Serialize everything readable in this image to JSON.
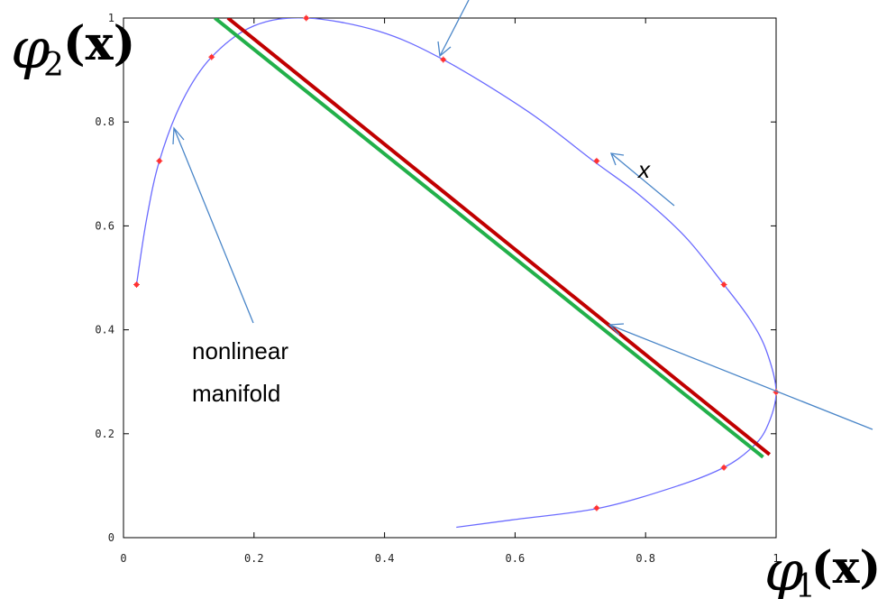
{
  "chart_data": {
    "type": "scatter",
    "xlim": [
      0,
      1
    ],
    "ylim": [
      0,
      1
    ],
    "xticks": [
      0,
      0.2,
      0.4,
      0.6,
      0.8,
      1
    ],
    "yticks": [
      0,
      0.2,
      0.4,
      0.6,
      0.8,
      1
    ],
    "x_tick_labels": [
      "0",
      "0.2",
      "0.4",
      "0.6",
      "0.8",
      "1"
    ],
    "y_tick_labels": [
      "0",
      "0.2",
      "0.4",
      "0.6",
      "0.8",
      "1"
    ],
    "grid": false,
    "xlabel": {
      "phi": "φ",
      "sub": "1",
      "arg": "(x)"
    },
    "ylabel": {
      "phi": "φ",
      "sub": "2",
      "arg": "(x)"
    },
    "series": [
      {
        "kind": "curve",
        "color": "#6b6bff",
        "x": [
          0.51,
          0.6,
          0.73,
          0.85,
          0.92,
          0.96,
          0.985,
          1.0,
          0.985,
          0.96,
          0.92,
          0.86,
          0.79,
          0.72,
          0.62,
          0.49,
          0.39,
          0.28,
          0.2,
          0.135,
          0.09,
          0.055,
          0.035,
          0.02
        ],
        "y": [
          0.02,
          0.035,
          0.057,
          0.1,
          0.135,
          0.17,
          0.21,
          0.28,
          0.36,
          0.42,
          0.487,
          0.58,
          0.66,
          0.725,
          0.82,
          0.92,
          0.975,
          1.0,
          0.985,
          0.925,
          0.84,
          0.725,
          0.61,
          0.487
        ]
      },
      {
        "kind": "points",
        "color": "#ff3333",
        "x": [
          0.02,
          0.055,
          0.135,
          0.28,
          0.49,
          0.725,
          0.92,
          1.0,
          0.92,
          0.725
        ],
        "y": [
          0.487,
          0.725,
          0.925,
          1.0,
          0.92,
          0.725,
          0.487,
          0.28,
          0.135,
          0.057
        ]
      },
      {
        "kind": "line",
        "color": "#c00000",
        "x": [
          0.16,
          0.99
        ],
        "y": [
          1.0,
          0.16
        ]
      },
      {
        "kind": "line",
        "color": "#22b04a",
        "x": [
          0.14,
          0.98
        ],
        "y": [
          1.0,
          0.155
        ]
      }
    ],
    "annotations": [
      {
        "text_lines": [
          "nonlinear",
          "manifold"
        ]
      },
      {
        "text_lines": [
          "x"
        ],
        "italic": true
      }
    ]
  }
}
